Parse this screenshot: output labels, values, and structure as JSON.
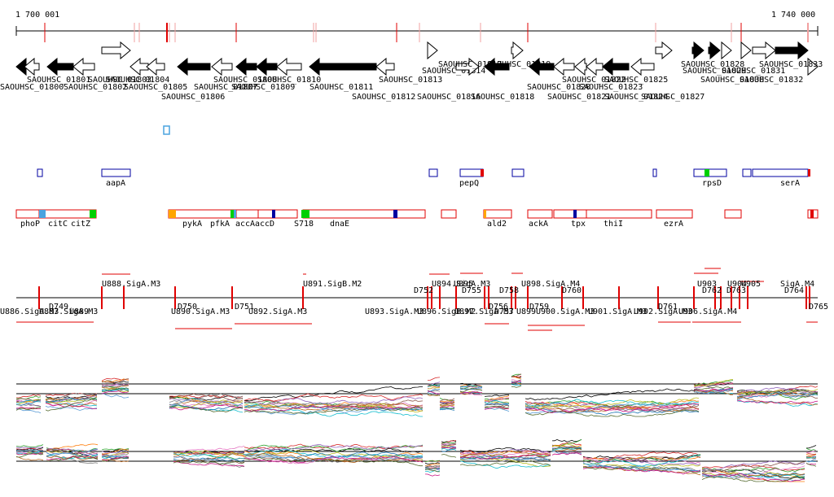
{
  "coords": {
    "start": "1 700 001",
    "end": "1 740 000"
  },
  "colors": {
    "black": "#000000",
    "red": "#e00000",
    "blue": "#0000a0",
    "green": "#00d000",
    "orange": "#ffa500",
    "cyan": "#4aa3df"
  },
  "genes": [
    "SAOUHSC_01800",
    "SAOUHSC_01801",
    "SAOUHSC_01802",
    "SAOUHSC_01803",
    "SAOUHSC_01804",
    "SAOUHSC_01805",
    "SAOUHSC_01806",
    "SAOUHSC_01807",
    "SAOUHSC_01808",
    "SAOUHSC_01809",
    "SAOUHSC_01810",
    "SAOUHSC_01811",
    "SAOUHSC_01812",
    "SAOUHSC_01813",
    "SAOUHSC_01814",
    "SAOUHSC_01816",
    "SAOUHSC_01817",
    "SAOUHSC_01818",
    "SAOUHSC_01819",
    "SAOUHSC_01820",
    "SAOUHSC_01821",
    "SAOUHSC_01822",
    "SAOUHSC_01823",
    "SAOUHSC_01824",
    "SAOUHSC_01825",
    "SAOUHSC_01827",
    "SAOUHSC_01828",
    "SAOUHSC_01829",
    "SAOUHSC_01830",
    "SAOUHSC_01831",
    "SAOUHSC_01832",
    "SAOUHSC_01833"
  ],
  "blue_features": [
    "aapA",
    "pepQ",
    "rpsD",
    "serA"
  ],
  "red_features": [
    "phoP",
    "citC",
    "citZ",
    "pykA",
    "pfkA",
    "accA",
    "accD",
    "S718",
    "dnaE",
    "ald2",
    "ackA",
    "tpx",
    "thiI",
    "ezrA"
  ],
  "transcripts_upper": [
    "U888.SigA.M3",
    "U891.SigB.M2",
    "U894.SigA.M3",
    "U895",
    "U898.SigA.M4",
    "D752",
    "D755",
    "D758",
    "D760",
    "D762",
    "D763",
    "D764",
    "U903",
    "U904",
    "U905",
    "SigA.M4"
  ],
  "transcripts_lower": [
    "U886.SigA.M3",
    "D749",
    "U887.SigA.M3",
    "U889",
    "U890.SigA.M3",
    "D750",
    "D751",
    "U892.SigA.M3",
    "U893.SigA.M3",
    "U896.SigB.M2",
    "U897.SigA.M3",
    "D756",
    "D757",
    "D759",
    "U899",
    "U900.SigA.M3",
    "U901.SigA.M3",
    "U902.SigA.M3",
    "D761",
    "U906.SigA.M4",
    "D765"
  ]
}
